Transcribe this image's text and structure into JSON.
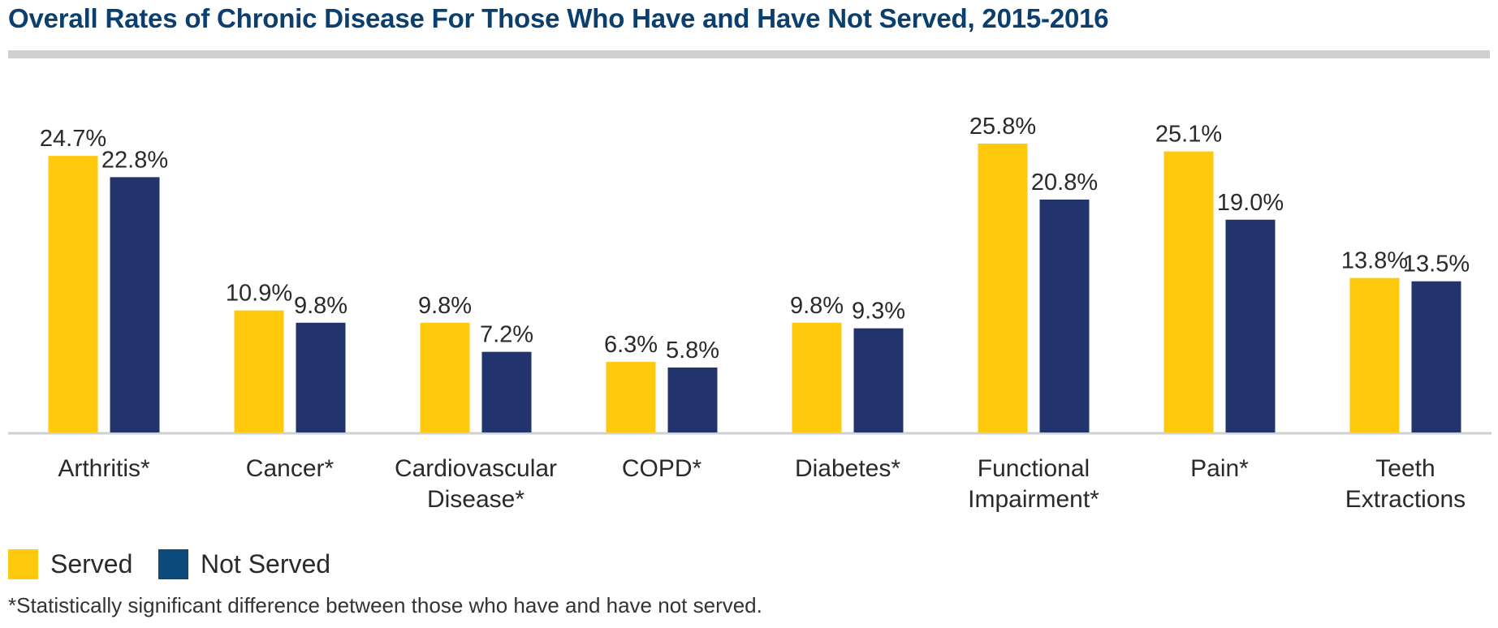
{
  "title": "Overall Rates of Chronic Disease For Those Who Have and Have Not Served, 2015-2016",
  "footnote": "*Statistically significant difference between those who have and have not served.",
  "legend": {
    "served": "Served",
    "not_served": "Not Served"
  },
  "colors": {
    "served": "#ffc90e",
    "not_served": "#23346c",
    "legend_not_served": "#0b4a7a",
    "title": "#0b3f6e",
    "rule": "#cfd0d2",
    "baseline": "#cfd0d2"
  },
  "chart_data": {
    "type": "bar",
    "title": "Overall Rates of Chronic Disease For Those Who Have and Have Not Served, 2015-2016",
    "xlabel": "",
    "ylabel": "",
    "ylim": [
      0,
      30
    ],
    "grid": false,
    "legend_position": "bottom-left",
    "categories": [
      [
        "Arthritis*"
      ],
      [
        "Cancer*"
      ],
      [
        "Cardiovascular",
        "Disease*"
      ],
      [
        "COPD*"
      ],
      [
        "Diabetes*"
      ],
      [
        "Functional",
        "Impairment*"
      ],
      [
        "Pain*"
      ],
      [
        "Teeth",
        "Extractions"
      ]
    ],
    "series": [
      {
        "name": "Served",
        "values": [
          24.7,
          10.9,
          9.8,
          6.3,
          9.8,
          25.8,
          25.1,
          13.8
        ],
        "labels": [
          "24.7%",
          "10.9%",
          "9.8%",
          "6.3%",
          "9.8%",
          "25.8%",
          "25.1%",
          "13.8%"
        ]
      },
      {
        "name": "Not Served",
        "values": [
          22.8,
          9.8,
          7.2,
          5.8,
          9.3,
          20.8,
          19.0,
          13.5
        ],
        "labels": [
          "22.8%",
          "9.8%",
          "7.2%",
          "5.8%",
          "9.3%",
          "20.8%",
          "19.0%",
          "13.5%"
        ]
      }
    ]
  }
}
